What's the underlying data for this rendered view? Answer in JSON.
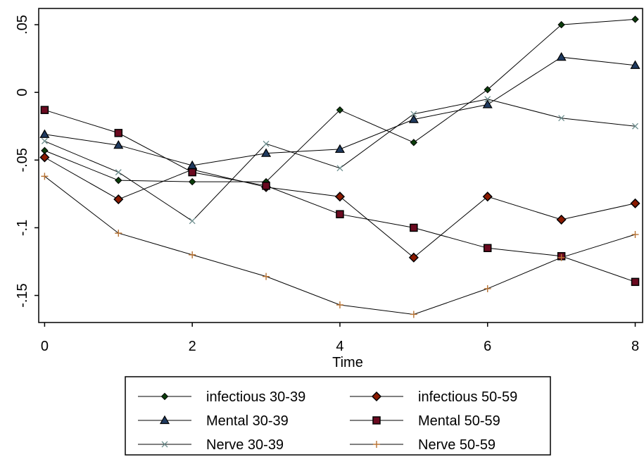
{
  "chart_data": {
    "type": "line",
    "title": "",
    "xlabel": "Time",
    "ylabel": "",
    "xlim": [
      -0.08,
      8.1
    ],
    "ylim": [
      -0.17,
      0.062
    ],
    "x_ticks": [
      0,
      2,
      4,
      6,
      8
    ],
    "x_tick_labels": [
      "0",
      "2",
      "4",
      "6",
      "8"
    ],
    "y_ticks": [
      0.05,
      0,
      -0.05,
      -0.1,
      -0.15
    ],
    "y_tick_labels": [
      ".05",
      "0",
      "-.05",
      "-.1",
      "-.15"
    ],
    "grid": false,
    "legend_position": "bottom",
    "x": [
      0,
      1,
      2,
      3,
      4,
      5,
      6,
      7,
      8
    ],
    "series": [
      {
        "name": "infectious 30-39",
        "marker": "circle",
        "fill": "#0b3d0b",
        "stroke": "#000000",
        "values": [
          -0.043,
          -0.065,
          -0.066,
          -0.066,
          -0.013,
          -0.037,
          0.002,
          0.05,
          0.054
        ]
      },
      {
        "name": "infectious 50-59",
        "marker": "diamond",
        "fill": "#8b1a00",
        "stroke": "#000000",
        "values": [
          -0.048,
          -0.079,
          -0.057,
          -0.07,
          -0.077,
          -0.122,
          -0.077,
          -0.094,
          -0.082
        ]
      },
      {
        "name": "Mental 30-39",
        "marker": "triangle",
        "fill": "#1f3a5f",
        "stroke": "#000000",
        "values": [
          -0.031,
          -0.039,
          -0.054,
          -0.045,
          -0.042,
          -0.02,
          -0.009,
          0.026,
          0.02
        ]
      },
      {
        "name": "Mental 50-59",
        "marker": "square",
        "fill": "#6b0a20",
        "stroke": "#000000",
        "values": [
          -0.013,
          -0.03,
          -0.059,
          -0.069,
          -0.09,
          -0.1,
          -0.115,
          -0.121,
          -0.14
        ]
      },
      {
        "name": "Nerve 30-39",
        "marker": "x",
        "fill": "#6e8f8f",
        "stroke": "#000000",
        "values": [
          -0.036,
          -0.059,
          -0.095,
          -0.038,
          -0.056,
          -0.016,
          -0.005,
          -0.019,
          -0.025
        ]
      },
      {
        "name": "Nerve 50-59",
        "marker": "plus",
        "fill": "#b87333",
        "stroke": "#000000",
        "values": [
          -0.062,
          -0.104,
          -0.12,
          -0.136,
          -0.157,
          -0.164,
          -0.145,
          -0.122,
          -0.105
        ]
      }
    ]
  }
}
